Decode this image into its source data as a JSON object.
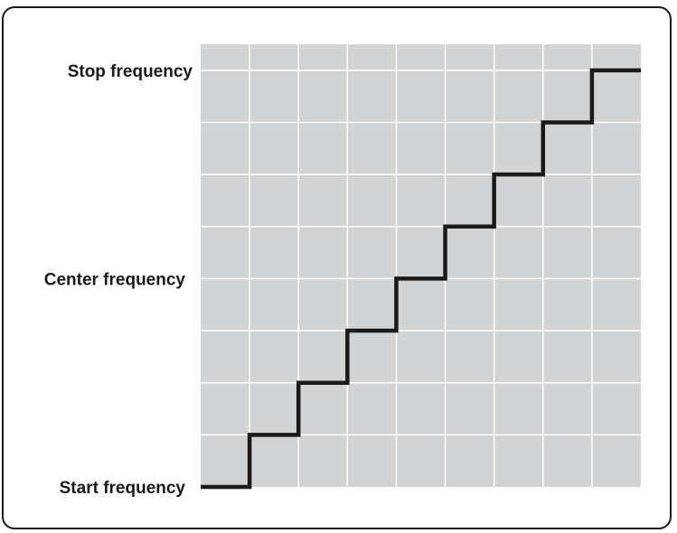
{
  "chart_data": {
    "type": "line",
    "line_style": "step",
    "grid": true,
    "grid_color": "#ffffff",
    "plot_background": "#d1d3d4",
    "line_color": "#1a1a1a",
    "frame_color": "#1a1a1a",
    "x": [
      0,
      1,
      2,
      3,
      4,
      5,
      6,
      7,
      8,
      9
    ],
    "values": [
      0,
      1,
      2,
      3,
      4,
      5,
      6,
      7,
      8,
      8
    ],
    "xlim": [
      0,
      9
    ],
    "ylim": [
      0,
      8.5
    ],
    "xticks": [
      0,
      1,
      2,
      3,
      4,
      5,
      6,
      7,
      8,
      9
    ],
    "yticks": [
      0,
      1,
      2,
      3,
      4,
      5,
      6,
      7,
      8,
      8.5
    ],
    "y_tick_labels": [
      {
        "value": 0,
        "label": "Start frequency"
      },
      {
        "value": 4,
        "label": "Center frequency"
      },
      {
        "value": 8,
        "label": "Stop frequency"
      }
    ]
  }
}
